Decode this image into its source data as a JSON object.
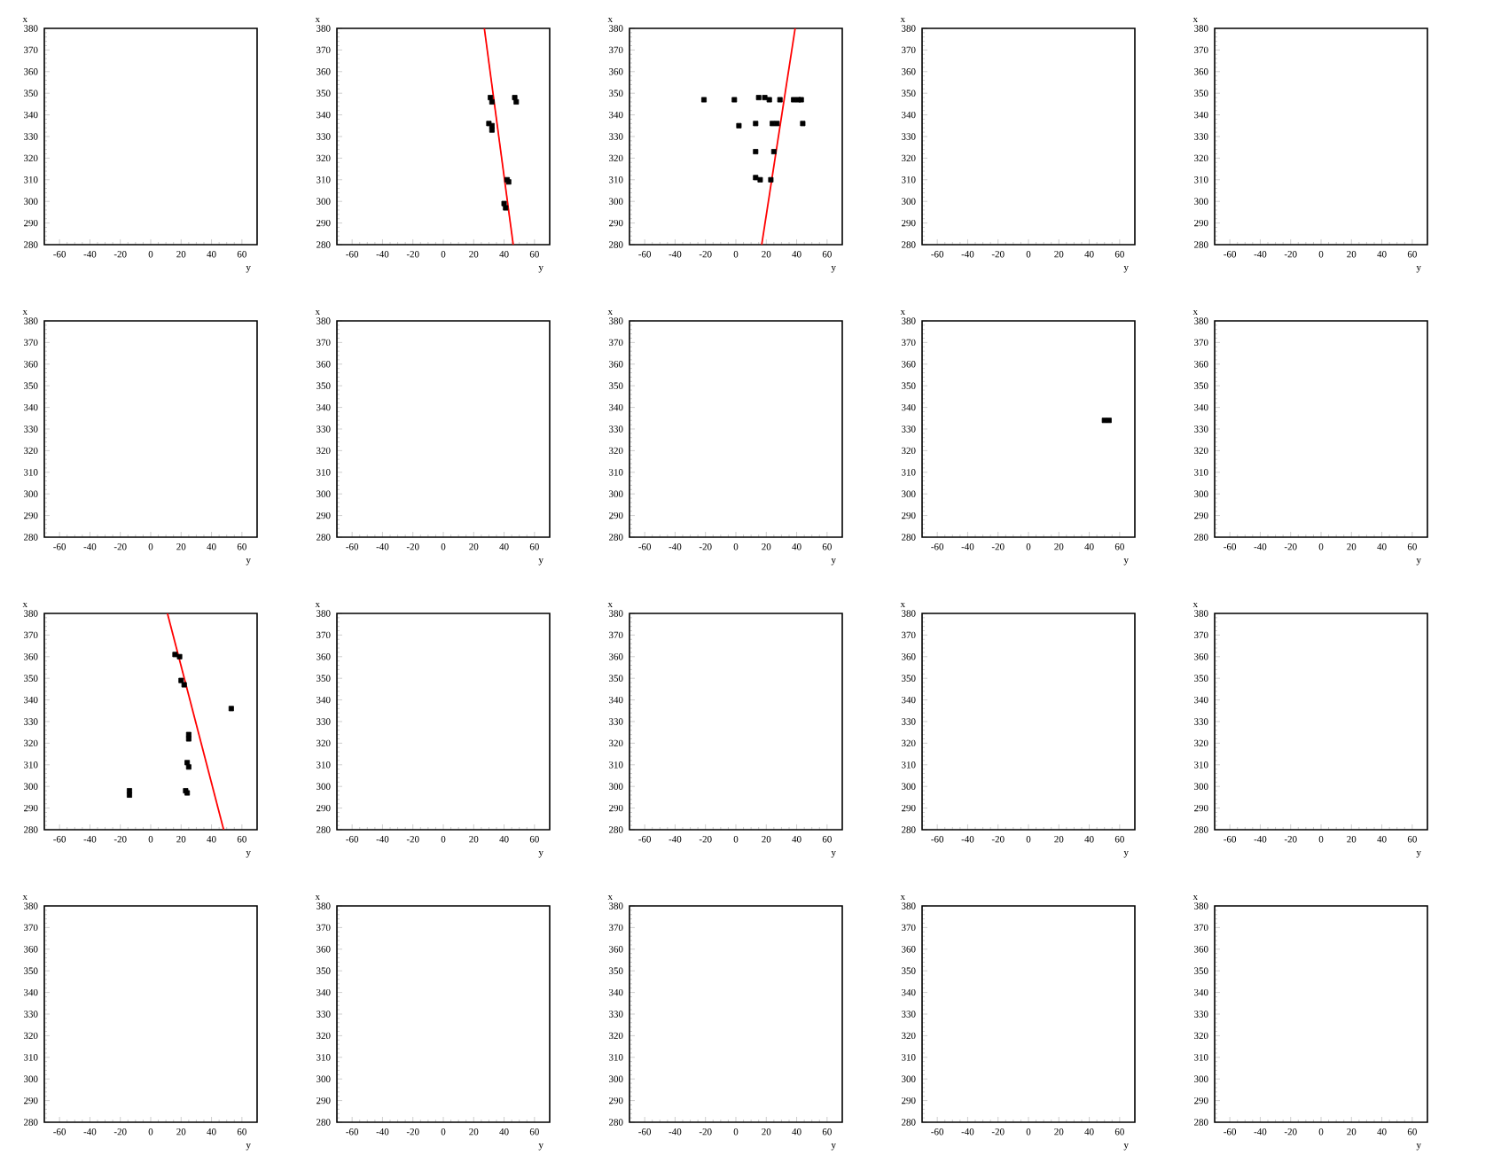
{
  "chart_data": [
    {
      "type": "scatter",
      "xlabel": "y",
      "ylabel": "x",
      "xlim": [
        -70,
        70
      ],
      "ylim": [
        280,
        380
      ],
      "xticks": [
        -60,
        -40,
        -20,
        0,
        20,
        40,
        60
      ],
      "yticks": [
        280,
        290,
        300,
        310,
        320,
        330,
        340,
        350,
        360,
        370,
        380
      ],
      "marker": "square"
    },
    {
      "type": "scatter",
      "xlabel": "y",
      "ylabel": "x",
      "xlim": [
        -70,
        70
      ],
      "ylim": [
        280,
        380
      ],
      "xticks": [
        -60,
        -40,
        -20,
        0,
        20,
        40,
        60
      ],
      "yticks": [
        280,
        290,
        300,
        310,
        320,
        330,
        340,
        350,
        360,
        370,
        380
      ],
      "marker": "square",
      "series": [
        {
          "color": "#000000",
          "x": [
            31,
            32,
            47,
            48,
            30,
            32,
            32,
            42,
            43,
            40,
            41
          ],
          "values": [
            348,
            346,
            348,
            346,
            336,
            335,
            333,
            310,
            309,
            299,
            297
          ]
        },
        {
          "type": "line",
          "marker": "none",
          "color": "#ff0000",
          "x": [
            27,
            46
          ],
          "values": [
            380,
            280
          ]
        }
      ]
    },
    {
      "type": "scatter",
      "xlabel": "y",
      "ylabel": "x",
      "xlim": [
        -70,
        70
      ],
      "ylim": [
        280,
        380
      ],
      "xticks": [
        -60,
        -40,
        -20,
        0,
        20,
        40,
        60
      ],
      "yticks": [
        280,
        290,
        300,
        310,
        320,
        330,
        340,
        350,
        360,
        370,
        380
      ],
      "marker": "square",
      "series": [
        {
          "color": "#000000",
          "x": [
            -21,
            -1,
            15,
            19,
            22,
            29,
            38,
            41,
            43,
            2,
            13,
            24,
            27,
            44,
            13,
            25,
            13,
            16,
            23
          ],
          "values": [
            347,
            347,
            348,
            348,
            347,
            347,
            347,
            347,
            347,
            335,
            336,
            336,
            336,
            336,
            323,
            323,
            311,
            310,
            310
          ]
        },
        {
          "type": "line",
          "marker": "none",
          "color": "#ff0000",
          "x": [
            17,
            39
          ],
          "values": [
            280,
            380
          ]
        }
      ]
    },
    {
      "type": "scatter",
      "xlabel": "y",
      "ylabel": "x",
      "xlim": [
        -70,
        70
      ],
      "ylim": [
        280,
        380
      ],
      "xticks": [
        -60,
        -40,
        -20,
        0,
        20,
        40,
        60
      ],
      "yticks": [
        280,
        290,
        300,
        310,
        320,
        330,
        340,
        350,
        360,
        370,
        380
      ],
      "marker": "square"
    },
    {
      "type": "scatter",
      "xlabel": "y",
      "ylabel": "x",
      "xlim": [
        -70,
        70
      ],
      "ylim": [
        280,
        380
      ],
      "xticks": [
        -60,
        -40,
        -20,
        0,
        20,
        40,
        60
      ],
      "yticks": [
        280,
        290,
        300,
        310,
        320,
        330,
        340,
        350,
        360,
        370,
        380
      ],
      "marker": "square"
    },
    {
      "type": "scatter",
      "xlabel": "y",
      "ylabel": "x",
      "xlim": [
        -70,
        70
      ],
      "ylim": [
        280,
        380
      ],
      "xticks": [
        -60,
        -40,
        -20,
        0,
        20,
        40,
        60
      ],
      "yticks": [
        280,
        290,
        300,
        310,
        320,
        330,
        340,
        350,
        360,
        370,
        380
      ],
      "marker": "square"
    },
    {
      "type": "scatter",
      "xlabel": "y",
      "ylabel": "x",
      "xlim": [
        -70,
        70
      ],
      "ylim": [
        280,
        380
      ],
      "xticks": [
        -60,
        -40,
        -20,
        0,
        20,
        40,
        60
      ],
      "yticks": [
        280,
        290,
        300,
        310,
        320,
        330,
        340,
        350,
        360,
        370,
        380
      ],
      "marker": "square"
    },
    {
      "type": "scatter",
      "xlabel": "y",
      "ylabel": "x",
      "xlim": [
        -70,
        70
      ],
      "ylim": [
        280,
        380
      ],
      "xticks": [
        -60,
        -40,
        -20,
        0,
        20,
        40,
        60
      ],
      "yticks": [
        280,
        290,
        300,
        310,
        320,
        330,
        340,
        350,
        360,
        370,
        380
      ],
      "marker": "square"
    },
    {
      "type": "scatter",
      "xlabel": "y",
      "ylabel": "x",
      "xlim": [
        -70,
        70
      ],
      "ylim": [
        280,
        380
      ],
      "xticks": [
        -60,
        -40,
        -20,
        0,
        20,
        40,
        60
      ],
      "yticks": [
        280,
        290,
        300,
        310,
        320,
        330,
        340,
        350,
        360,
        370,
        380
      ],
      "marker": "square",
      "series": [
        {
          "color": "#000000",
          "x": [
            50,
            53
          ],
          "values": [
            334,
            334
          ]
        }
      ]
    },
    {
      "type": "scatter",
      "xlabel": "y",
      "ylabel": "x",
      "xlim": [
        -70,
        70
      ],
      "ylim": [
        280,
        380
      ],
      "xticks": [
        -60,
        -40,
        -20,
        0,
        20,
        40,
        60
      ],
      "yticks": [
        280,
        290,
        300,
        310,
        320,
        330,
        340,
        350,
        360,
        370,
        380
      ],
      "marker": "square"
    },
    {
      "type": "scatter",
      "xlabel": "y",
      "ylabel": "x",
      "xlim": [
        -70,
        70
      ],
      "ylim": [
        280,
        380
      ],
      "xticks": [
        -60,
        -40,
        -20,
        0,
        20,
        40,
        60
      ],
      "yticks": [
        280,
        290,
        300,
        310,
        320,
        330,
        340,
        350,
        360,
        370,
        380
      ],
      "marker": "square",
      "series": [
        {
          "color": "#000000",
          "x": [
            16,
            19,
            20,
            22,
            25,
            25,
            24,
            25,
            -14,
            -14,
            23,
            24,
            53
          ],
          "values": [
            361,
            360,
            349,
            347,
            324,
            322,
            311,
            309,
            298,
            296,
            298,
            297,
            336
          ]
        },
        {
          "type": "line",
          "marker": "none",
          "color": "#ff0000",
          "x": [
            11,
            48
          ],
          "values": [
            380,
            280
          ]
        }
      ]
    },
    {
      "type": "scatter",
      "xlabel": "y",
      "ylabel": "x",
      "xlim": [
        -70,
        70
      ],
      "ylim": [
        280,
        380
      ],
      "xticks": [
        -60,
        -40,
        -20,
        0,
        20,
        40,
        60
      ],
      "yticks": [
        280,
        290,
        300,
        310,
        320,
        330,
        340,
        350,
        360,
        370,
        380
      ],
      "marker": "square"
    },
    {
      "type": "scatter",
      "xlabel": "y",
      "ylabel": "x",
      "xlim": [
        -70,
        70
      ],
      "ylim": [
        280,
        380
      ],
      "xticks": [
        -60,
        -40,
        -20,
        0,
        20,
        40,
        60
      ],
      "yticks": [
        280,
        290,
        300,
        310,
        320,
        330,
        340,
        350,
        360,
        370,
        380
      ],
      "marker": "square"
    },
    {
      "type": "scatter",
      "xlabel": "y",
      "ylabel": "x",
      "xlim": [
        -70,
        70
      ],
      "ylim": [
        280,
        380
      ],
      "xticks": [
        -60,
        -40,
        -20,
        0,
        20,
        40,
        60
      ],
      "yticks": [
        280,
        290,
        300,
        310,
        320,
        330,
        340,
        350,
        360,
        370,
        380
      ],
      "marker": "square"
    },
    {
      "type": "scatter",
      "xlabel": "y",
      "ylabel": "x",
      "xlim": [
        -70,
        70
      ],
      "ylim": [
        280,
        380
      ],
      "xticks": [
        -60,
        -40,
        -20,
        0,
        20,
        40,
        60
      ],
      "yticks": [
        280,
        290,
        300,
        310,
        320,
        330,
        340,
        350,
        360,
        370,
        380
      ],
      "marker": "square"
    },
    {
      "type": "scatter",
      "xlabel": "y",
      "ylabel": "x",
      "xlim": [
        -70,
        70
      ],
      "ylim": [
        280,
        380
      ],
      "xticks": [
        -60,
        -40,
        -20,
        0,
        20,
        40,
        60
      ],
      "yticks": [
        280,
        290,
        300,
        310,
        320,
        330,
        340,
        350,
        360,
        370,
        380
      ],
      "marker": "square"
    },
    {
      "type": "scatter",
      "xlabel": "y",
      "ylabel": "x",
      "xlim": [
        -70,
        70
      ],
      "ylim": [
        280,
        380
      ],
      "xticks": [
        -60,
        -40,
        -20,
        0,
        20,
        40,
        60
      ],
      "yticks": [
        280,
        290,
        300,
        310,
        320,
        330,
        340,
        350,
        360,
        370,
        380
      ],
      "marker": "square"
    },
    {
      "type": "scatter",
      "xlabel": "y",
      "ylabel": "x",
      "xlim": [
        -70,
        70
      ],
      "ylim": [
        280,
        380
      ],
      "xticks": [
        -60,
        -40,
        -20,
        0,
        20,
        40,
        60
      ],
      "yticks": [
        280,
        290,
        300,
        310,
        320,
        330,
        340,
        350,
        360,
        370,
        380
      ],
      "marker": "square"
    },
    {
      "type": "scatter",
      "xlabel": "y",
      "ylabel": "x",
      "xlim": [
        -70,
        70
      ],
      "ylim": [
        280,
        380
      ],
      "xticks": [
        -60,
        -40,
        -20,
        0,
        20,
        40,
        60
      ],
      "yticks": [
        280,
        290,
        300,
        310,
        320,
        330,
        340,
        350,
        360,
        370,
        380
      ],
      "marker": "square"
    },
    {
      "type": "scatter",
      "xlabel": "y",
      "ylabel": "x",
      "xlim": [
        -70,
        70
      ],
      "ylim": [
        280,
        380
      ],
      "xticks": [
        -60,
        -40,
        -20,
        0,
        20,
        40,
        60
      ],
      "yticks": [
        280,
        290,
        300,
        310,
        320,
        330,
        340,
        350,
        360,
        370,
        380
      ],
      "marker": "square"
    }
  ]
}
